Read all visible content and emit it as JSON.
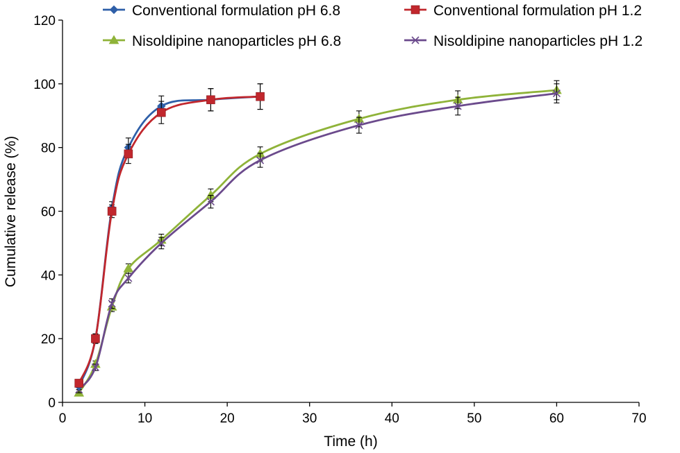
{
  "chart_data": {
    "type": "line",
    "title": "",
    "xlabel": "Time (h)",
    "ylabel": "Cumulative release (%)",
    "xlim": [
      0,
      70
    ],
    "ylim": [
      0,
      120
    ],
    "xticks": [
      0,
      10,
      20,
      30,
      40,
      50,
      60,
      70
    ],
    "yticks": [
      0,
      20,
      40,
      60,
      80,
      100,
      120
    ],
    "grid": false,
    "legend_position": "top",
    "series": [
      {
        "name": "Conventional formulation pH 6.8",
        "color": "#2e5fa8",
        "marker": "diamond",
        "x": [
          2,
          4,
          6,
          8,
          12,
          18,
          24
        ],
        "y": [
          5,
          20,
          61,
          80,
          93,
          95,
          96
        ],
        "err": [
          1,
          1.5,
          2,
          3,
          3.2,
          3.5,
          4
        ]
      },
      {
        "name": "Conventional formulation pH 1.2",
        "color": "#c1272d",
        "marker": "square",
        "x": [
          2,
          4,
          6,
          8,
          12,
          18,
          24
        ],
        "y": [
          6,
          20,
          60,
          78,
          91,
          95,
          96
        ],
        "err": [
          1,
          1.5,
          2,
          3,
          3.5,
          3.5,
          4
        ]
      },
      {
        "name": "Nisoldipine nanoparticles pH 6.8",
        "color": "#8fb339",
        "marker": "triangle",
        "x": [
          2,
          4,
          6,
          8,
          12,
          18,
          24,
          36,
          48,
          60
        ],
        "y": [
          3,
          12,
          30,
          42,
          51,
          65,
          78,
          89,
          95,
          98
        ],
        "err": [
          1,
          1,
          1.5,
          1.5,
          1.8,
          2,
          2.2,
          2.5,
          2.8,
          3
        ]
      },
      {
        "name": "Nisoldipine nanoparticles pH 1.2",
        "color": "#6b4a8c",
        "marker": "x",
        "x": [
          2,
          4,
          6,
          8,
          12,
          18,
          24,
          36,
          48,
          60
        ],
        "y": [
          4,
          11,
          31,
          39,
          50,
          63,
          76,
          87,
          93,
          97
        ],
        "err": [
          1,
          1,
          1.5,
          1.5,
          1.8,
          2,
          2.2,
          2.5,
          2.8,
          3
        ]
      }
    ]
  }
}
